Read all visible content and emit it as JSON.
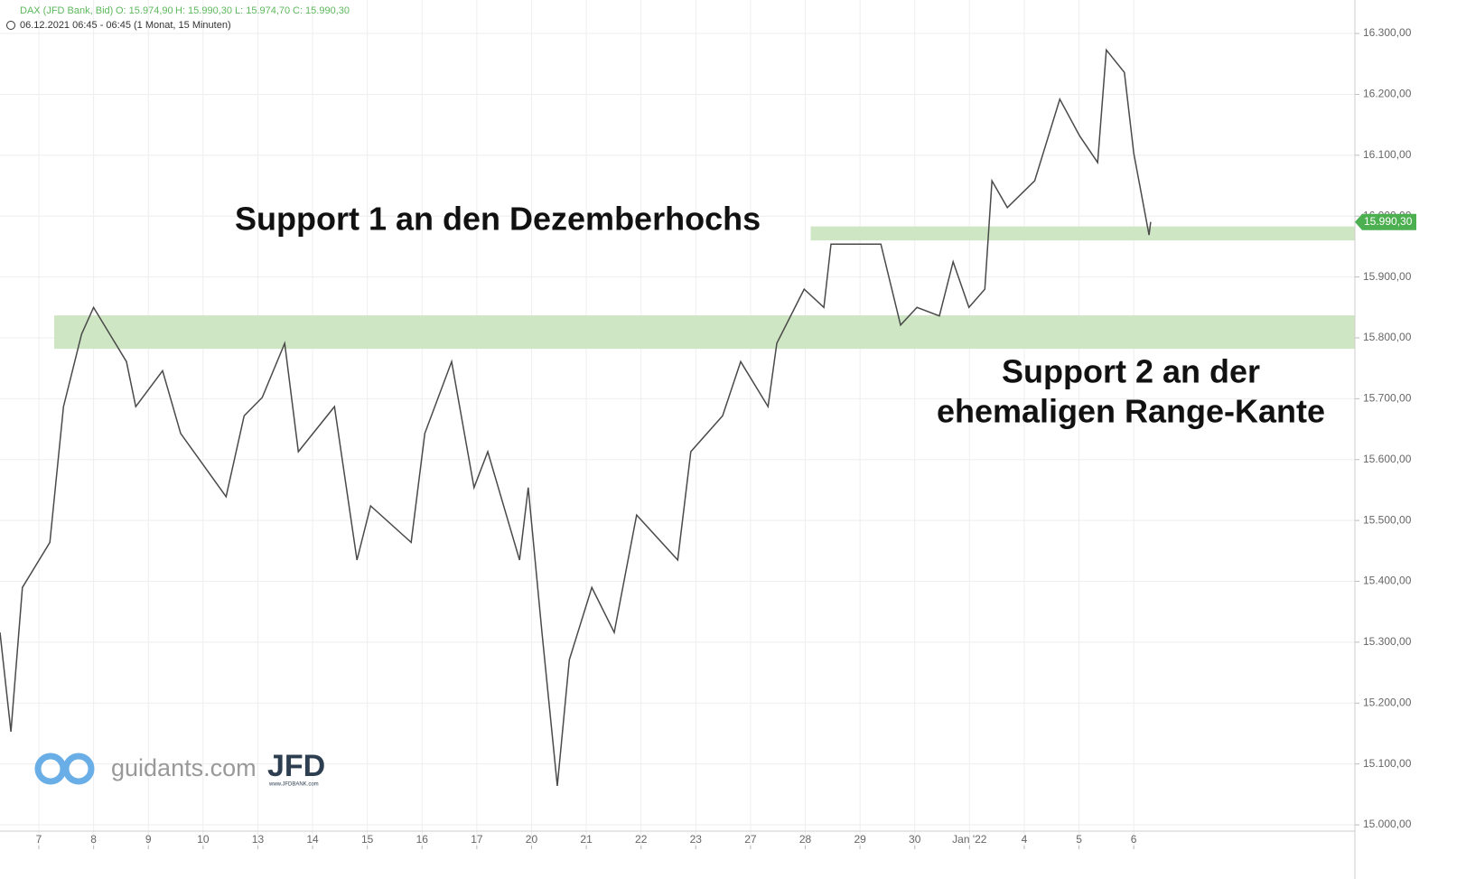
{
  "chart_data": {
    "type": "line",
    "instrument": "DAX (JFD Bank, Bid)",
    "open": "O: 15.974,90",
    "high": "H: 15.990,30",
    "low": "L: 15.974,70",
    "close": "C: 15.990,30",
    "timestamp": "06.12.2021 06:45 - 06:45",
    "period": "(1 Monat, 15 Minuten)",
    "annotations": [
      "Support 1 an den Dezemberhochs",
      "Support 2 an der",
      "ehemaligen Range-Kante"
    ],
    "logo": {
      "site": "guidants.com",
      "brand": "JFD",
      "url": "www.JFDBANK.com"
    },
    "last_price": {
      "value": 15990.3,
      "label": "15.990,30"
    },
    "color": "#4a4a4a",
    "x": [
      -0.71,
      -0.51,
      -0.3,
      0.2,
      0.45,
      0.78,
      1.0,
      1.6,
      1.77,
      2.26,
      2.59,
      3.42,
      3.75,
      4.08,
      4.49,
      4.74,
      5.4,
      5.81,
      6.06,
      6.8,
      7.05,
      7.54,
      7.95,
      8.2,
      8.78,
      8.94,
      9.19,
      9.47,
      9.69,
      10.1,
      10.51,
      10.92,
      11.67,
      11.91,
      12.49,
      12.82,
      13.32,
      13.48,
      13.98,
      14.34,
      14.47,
      15.38,
      15.74,
      16.04,
      16.45,
      16.7,
      16.99,
      17.28,
      17.41,
      17.69,
      18.19,
      18.65,
      19.01,
      19.34,
      19.5,
      19.83,
      20.0,
      20.28,
      20.31
    ],
    "values": [
      15316,
      15153,
      15390,
      15464,
      15687,
      15806,
      15850,
      15761,
      15687,
      15746,
      15643,
      15539,
      15672,
      15702,
      15791,
      15613,
      15687,
      15435,
      15524,
      15464,
      15643,
      15761,
      15554,
      15613,
      15435,
      15554,
      15316,
      15064,
      15271,
      15390,
      15316,
      15509,
      15435,
      15613,
      15672,
      15761,
      15687,
      15791,
      15880,
      15850,
      15954,
      15954,
      15821,
      15850,
      15836,
      15925,
      15850,
      15880,
      16058,
      16014,
      16058,
      16192,
      16132,
      16088,
      16273,
      16236,
      16103,
      15969,
      15990.3
    ],
    "zones": [
      {
        "from": 15960,
        "to": 15983,
        "start": 14.1,
        "color": "#cfe6c4"
      },
      {
        "from": 15782,
        "to": 15837,
        "start": 0.28,
        "color": "#cfe6c4"
      }
    ],
    "xlim": [
      -0.71,
      24.04
    ],
    "ylim": [
      14960,
      16355
    ],
    "xticks": [
      {
        "value": 0,
        "label": "7"
      },
      {
        "value": 1,
        "label": "8"
      },
      {
        "value": 2,
        "label": "9"
      },
      {
        "value": 3,
        "label": "10"
      },
      {
        "value": 4,
        "label": "13"
      },
      {
        "value": 5,
        "label": "14"
      },
      {
        "value": 6,
        "label": "15"
      },
      {
        "value": 7,
        "label": "16"
      },
      {
        "value": 8,
        "label": "17"
      },
      {
        "value": 9,
        "label": "20"
      },
      {
        "value": 10,
        "label": "21"
      },
      {
        "value": 11,
        "label": "22"
      },
      {
        "value": 12,
        "label": "23"
      },
      {
        "value": 13,
        "label": "27"
      },
      {
        "value": 14,
        "label": "28"
      },
      {
        "value": 15,
        "label": "29"
      },
      {
        "value": 16,
        "label": "30"
      },
      {
        "value": 17,
        "label": "Jan '22"
      },
      {
        "value": 18,
        "label": "4"
      },
      {
        "value": 19,
        "label": "5"
      },
      {
        "value": 20,
        "label": "6"
      }
    ],
    "yticks": [
      {
        "value": 15000,
        "label": "15.000,00"
      },
      {
        "value": 15100,
        "label": "15.100,00"
      },
      {
        "value": 15200,
        "label": "15.200,00"
      },
      {
        "value": 15300,
        "label": "15.300,00"
      },
      {
        "value": 15400,
        "label": "15.400,00"
      },
      {
        "value": 15500,
        "label": "15.500,00"
      },
      {
        "value": 15600,
        "label": "15.600,00"
      },
      {
        "value": 15700,
        "label": "15.700,00"
      },
      {
        "value": 15800,
        "label": "15.800,00"
      },
      {
        "value": 15900,
        "label": "15.900,00"
      },
      {
        "value": 16000,
        "label": "16.000,00"
      },
      {
        "value": 16100,
        "label": "16.100,00"
      },
      {
        "value": 16200,
        "label": "16.200,00"
      },
      {
        "value": 16300,
        "label": "16.300,00"
      }
    ],
    "grid": true
  }
}
